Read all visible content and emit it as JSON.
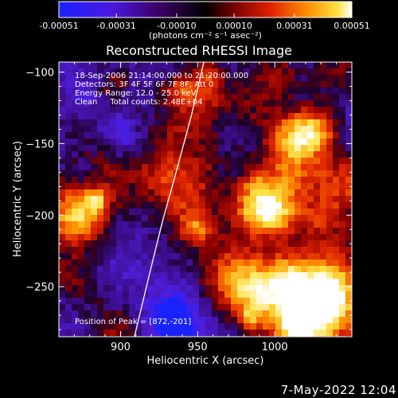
{
  "timestamp": "7-May-2022 12:04",
  "colorbar": {
    "ticks": [
      "-0.00051",
      "-0.00031",
      "-0.00010",
      "0.00010",
      "0.00031",
      "0.00051"
    ],
    "unit_label": "(photons cm⁻² s⁻¹ asec⁻²)",
    "range": [
      -0.00051,
      0.00051
    ],
    "colors": [
      "#1a22ff",
      "#5a10c0",
      "#3a0060",
      "#000000",
      "#7a0000",
      "#e02000",
      "#ff8000",
      "#ffe040",
      "#ffffff"
    ]
  },
  "annotations": {
    "line1": "18-Sep-2006 21:14:00.000 to 21:20:00.000",
    "line2": "Detectors: 3F 4F 5F 6F 7F 8F, Att 0",
    "line3": "Energy Range: 12.0 - 25.0 keV",
    "line4": "Clean     Total counts: 2.48E+04",
    "peak": "Position of Peak = [872,-201]"
  },
  "chart_data": {
    "type": "heatmap",
    "title": "Reconstructed RHESSI Image",
    "xlabel": "Heliocentric X (arcsec)",
    "ylabel": "Heliocentric Y (arcsec)",
    "xlim": [
      860,
      1050
    ],
    "ylim": [
      -285,
      -93
    ],
    "xticks": [
      900,
      950,
      1000
    ],
    "yticks": [
      -100,
      -150,
      -200,
      -250
    ],
    "xtick_labels": [
      "900",
      "950",
      "1000"
    ],
    "ytick_labels": [
      "−100",
      "−150",
      "−200",
      "−250"
    ],
    "peak_position": [
      872,
      -201
    ],
    "limb_curve": [
      [
        909,
        -285
      ],
      [
        919,
        -240
      ],
      [
        927,
        -205
      ],
      [
        936,
        -170
      ],
      [
        946,
        -130
      ],
      [
        954,
        -93
      ]
    ]
  }
}
